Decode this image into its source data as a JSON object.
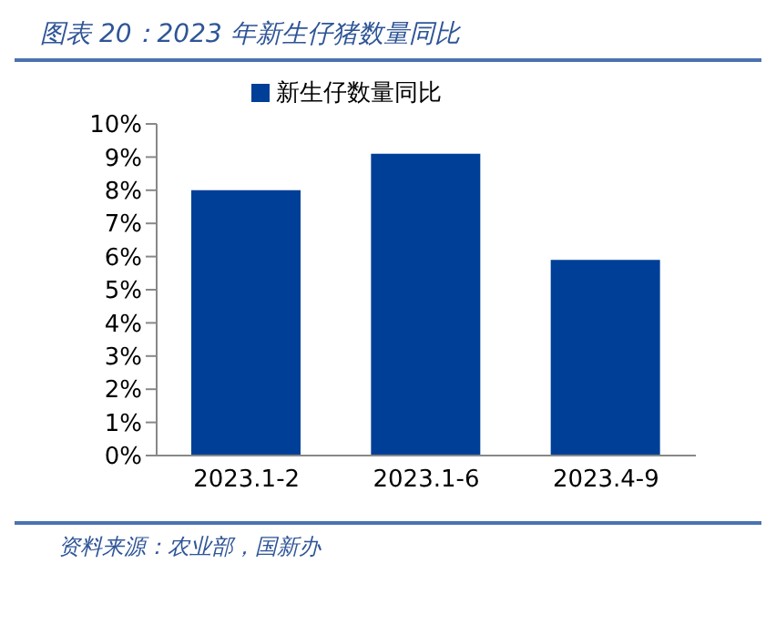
{
  "chart_data": {
    "type": "bar",
    "title": "图表 20：2023 年新生仔猪数量同比",
    "categories": [
      "2023.1-2",
      "2023.1-6",
      "2023.4-9"
    ],
    "series": [
      {
        "name": "新生仔数量同比",
        "color": "#003f98",
        "values": [
          8,
          9.1,
          5.9
        ]
      }
    ],
    "ylim": [
      0,
      10
    ],
    "yticks": [
      {
        "value": 0,
        "label": "0%"
      },
      {
        "value": 1,
        "label": "1%"
      },
      {
        "value": 2,
        "label": "2%"
      },
      {
        "value": 3,
        "label": "3%"
      },
      {
        "value": 4,
        "label": "4%"
      },
      {
        "value": 5,
        "label": "5%"
      },
      {
        "value": 6,
        "label": "6%"
      },
      {
        "value": 7,
        "label": "7%"
      },
      {
        "value": 8,
        "label": "8%"
      },
      {
        "value": 9,
        "label": "9%"
      },
      {
        "value": 10,
        "label": "10%"
      }
    ],
    "grid": false,
    "legend": "top",
    "annotations": [
      "资料来源：农业部，国新办"
    ]
  }
}
